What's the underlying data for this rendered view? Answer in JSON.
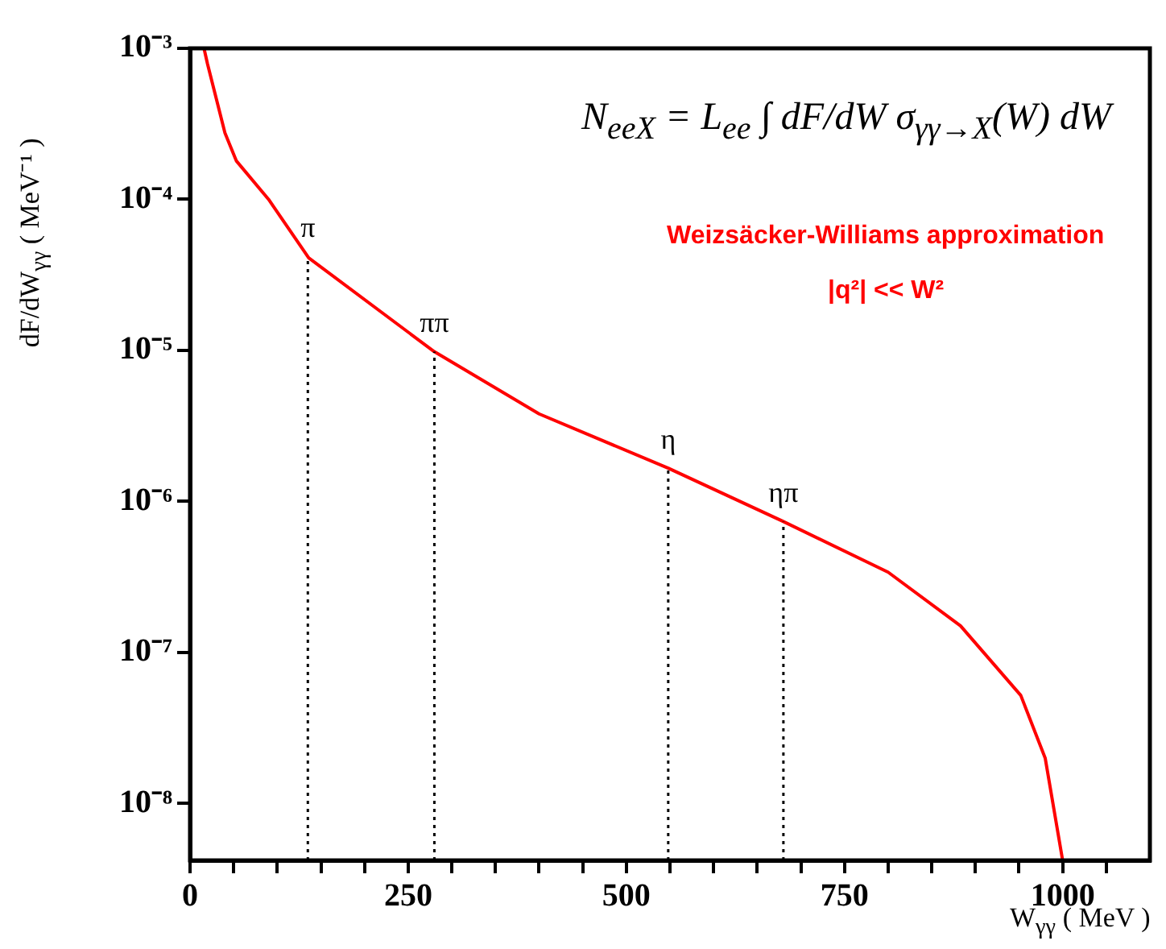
{
  "chart_data": {
    "type": "line",
    "xlabel": "W$_{γγ}$ ( MeV )",
    "ylabel": "dF/dW$_{γγ}$ ( MeV⁻¹ )",
    "annotations": [
      "N$_{eeX}$ = L$_{ee}$ ∫ dF/dW σ$_{γγ→X}$(W) dW",
      "Weizsäcker-Williams approximation",
      "|q²| << W²"
    ],
    "series": [
      {
        "color": "#ff0000",
        "x": [
          16,
          20,
          40,
          53,
          90,
          136,
          280,
          400,
          548,
          679,
          800,
          883,
          952,
          980,
          1000
        ],
        "values": [
          0.001,
          0.00079,
          0.000275,
          0.00018,
          0.0001,
          4.1e-05,
          9.8e-06,
          3.8e-06,
          1.66e-06,
          7.4e-07,
          3.4e-07,
          1.5e-07,
          5.2e-08,
          2e-08,
          4.2e-09
        ]
      }
    ],
    "ref_lines": [
      {
        "axis": "x",
        "value": 135,
        "label": "π",
        "line_style": "dotted",
        "color": "#000000"
      },
      {
        "axis": "x",
        "value": 280,
        "label": "ππ",
        "line_style": "dotted",
        "color": "#000000"
      },
      {
        "axis": "x",
        "value": 548,
        "label": "η",
        "line_style": "dotted",
        "color": "#000000"
      },
      {
        "axis": "x",
        "value": 680,
        "label": "ηπ",
        "line_style": "dotted",
        "color": "#000000"
      }
    ],
    "log": "y",
    "xlim": [
      0,
      1100
    ],
    "ylim": [
      4.2e-09,
      0.001
    ],
    "xticks": [
      0,
      {
        "value": 50,
        "label": null
      },
      {
        "value": 100,
        "label": null
      },
      {
        "value": 150,
        "label": null
      },
      {
        "value": 200,
        "label": null
      },
      250,
      {
        "value": 300,
        "label": null
      },
      {
        "value": 350,
        "label": null
      },
      {
        "value": 400,
        "label": null
      },
      {
        "value": 450,
        "label": null
      },
      500,
      {
        "value": 550,
        "label": null
      },
      {
        "value": 600,
        "label": null
      },
      {
        "value": 650,
        "label": null
      },
      {
        "value": 700,
        "label": null
      },
      750,
      {
        "value": 800,
        "label": null
      },
      {
        "value": 850,
        "label": null
      },
      {
        "value": 900,
        "label": null
      },
      {
        "value": 950,
        "label": null
      },
      1000,
      {
        "value": 1050,
        "label": null
      }
    ],
    "yticks": [
      {
        "value": 0.001,
        "label": "10⁻³"
      },
      {
        "value": 0.0001,
        "label": "10⁻⁴"
      },
      {
        "value": 1e-05,
        "label": "10⁻⁵"
      },
      {
        "value": 1e-06,
        "label": "10⁻⁶"
      },
      {
        "value": 1e-07,
        "label": "10⁻⁷"
      },
      {
        "value": 1e-08,
        "label": "10⁻⁸"
      }
    ],
    "grid": false,
    "legend": false,
    "marker": "none",
    "line_style": "solid"
  }
}
